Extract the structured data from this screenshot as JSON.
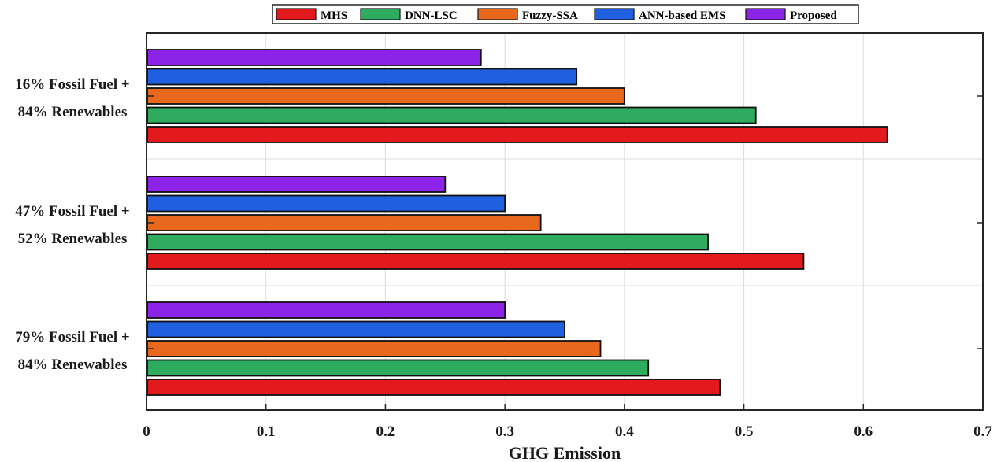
{
  "chart_data": {
    "type": "bar",
    "orientation": "horizontal",
    "xlabel": "GHG Emission",
    "ylabel": "",
    "xlim": [
      0,
      0.7
    ],
    "xticks": [
      "0",
      "0.1",
      "0.2",
      "0.3",
      "0.4",
      "0.5",
      "0.6",
      "0.7"
    ],
    "grid": true,
    "legend_position": "top",
    "categories": [
      [
        "16% Fossil Fuel +",
        "84% Renewables"
      ],
      [
        "47% Fossil Fuel +",
        "52% Renewables"
      ],
      [
        "79% Fossil Fuel +",
        "84% Renewables"
      ]
    ],
    "series": [
      {
        "name": "MHS",
        "color": "#e31a1c",
        "values": [
          0.62,
          0.55,
          0.48
        ]
      },
      {
        "name": "DNN-LSC",
        "color": "#2eab5f",
        "values": [
          0.51,
          0.47,
          0.42
        ]
      },
      {
        "name": "Fuzzy-SSA",
        "color": "#e8681e",
        "values": [
          0.4,
          0.33,
          0.38
        ]
      },
      {
        "name": "ANN-based EMS",
        "color": "#1f5fe0",
        "values": [
          0.36,
          0.3,
          0.35
        ]
      },
      {
        "name": "Proposed",
        "color": "#8b24e6",
        "values": [
          0.28,
          0.25,
          0.3
        ]
      }
    ]
  }
}
